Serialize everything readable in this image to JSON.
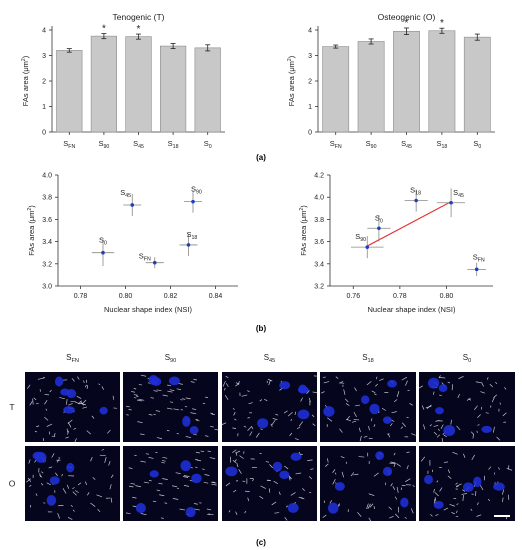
{
  "panel_labels": {
    "a": "(a)",
    "b": "(b)",
    "c": "(c)"
  },
  "chart_data": [
    {
      "type": "bar",
      "title": "Tenogenic (T)",
      "ylabel": "FAs area (μm²)",
      "ylim": [
        0,
        4
      ],
      "yticks": [
        "0",
        "1",
        "2",
        "3",
        "4"
      ],
      "categories": [
        {
          "base": "S",
          "sub": "FN"
        },
        {
          "base": "S",
          "sub": "90"
        },
        {
          "base": "S",
          "sub": "45"
        },
        {
          "base": "S",
          "sub": "18"
        },
        {
          "base": "S",
          "sub": "0"
        }
      ],
      "values": [
        3.2,
        3.76,
        3.74,
        3.37,
        3.3
      ],
      "errors": [
        0.07,
        0.1,
        0.1,
        0.1,
        0.12
      ],
      "significance": [
        "",
        "*",
        "*",
        "",
        ""
      ],
      "bar_color": "#c8c8c8"
    },
    {
      "type": "bar",
      "title": "Osteogenic (O)",
      "ylabel": "FAs area (μm²)",
      "ylim": [
        0,
        4
      ],
      "yticks": [
        "0",
        "1",
        "2",
        "3",
        "4"
      ],
      "categories": [
        {
          "base": "S",
          "sub": "FN"
        },
        {
          "base": "S",
          "sub": "90"
        },
        {
          "base": "S",
          "sub": "45"
        },
        {
          "base": "S",
          "sub": "18"
        },
        {
          "base": "S",
          "sub": "0"
        }
      ],
      "values": [
        3.35,
        3.55,
        3.95,
        3.97,
        3.72
      ],
      "errors": [
        0.06,
        0.1,
        0.13,
        0.1,
        0.12
      ],
      "significance": [
        "",
        "",
        "*",
        "*",
        ""
      ],
      "bar_color": "#c8c8c8"
    },
    {
      "type": "scatter",
      "ylabel": "FAs area (μm²)",
      "xlabel": "Nuclear shape index (NSI)",
      "xlim": [
        0.77,
        0.85
      ],
      "ylim": [
        3.0,
        4.0
      ],
      "xticks": [
        {
          "value": 0.78,
          "label": "0.78"
        },
        {
          "value": 0.8,
          "label": "0.80"
        },
        {
          "value": 0.82,
          "label": "0.82"
        },
        {
          "value": 0.84,
          "label": "0.84"
        }
      ],
      "yticks": [
        {
          "value": 3.0,
          "label": "3.0"
        },
        {
          "value": 3.2,
          "label": "3.2"
        },
        {
          "value": 3.4,
          "label": "3.4"
        },
        {
          "value": 3.6,
          "label": "3.6"
        },
        {
          "value": 3.8,
          "label": "3.8"
        },
        {
          "value": 4.0,
          "label": "4.0"
        }
      ],
      "points": [
        {
          "base": "S",
          "sub": "45",
          "x": 0.803,
          "y": 3.73,
          "xerr": 0.004,
          "yerr": 0.1
        },
        {
          "base": "S",
          "sub": "90",
          "x": 0.83,
          "y": 3.76,
          "xerr": 0.004,
          "yerr": 0.1
        },
        {
          "base": "S",
          "sub": "0",
          "x": 0.79,
          "y": 3.3,
          "xerr": 0.005,
          "yerr": 0.12
        },
        {
          "base": "S",
          "sub": "FN",
          "x": 0.813,
          "y": 3.21,
          "xerr": 0.004,
          "yerr": 0.05
        },
        {
          "base": "S",
          "sub": "18",
          "x": 0.828,
          "y": 3.37,
          "xerr": 0.004,
          "yerr": 0.1
        }
      ],
      "point_color": "#1f3fbf"
    },
    {
      "type": "scatter",
      "ylabel": "FAs area (μm²)",
      "xlabel": "Nuclear shape index (NSI)",
      "xlim": [
        0.75,
        0.82
      ],
      "ylim": [
        3.2,
        4.2
      ],
      "xticks": [
        {
          "value": 0.76,
          "label": "0.76"
        },
        {
          "value": 0.78,
          "label": "0.78"
        },
        {
          "value": 0.8,
          "label": "0.80"
        }
      ],
      "yticks": [
        {
          "value": 3.2,
          "label": "3.2"
        },
        {
          "value": 3.4,
          "label": "3.4"
        },
        {
          "value": 3.6,
          "label": "3.6"
        },
        {
          "value": 3.8,
          "label": "3.8"
        },
        {
          "value": 4.0,
          "label": "4.0"
        },
        {
          "value": 4.2,
          "label": "4.2"
        }
      ],
      "points": [
        {
          "base": "S",
          "sub": "90",
          "x": 0.766,
          "y": 3.55,
          "xerr": 0.007,
          "yerr": 0.1
        },
        {
          "base": "S",
          "sub": "0",
          "x": 0.771,
          "y": 3.72,
          "xerr": 0.005,
          "yerr": 0.12
        },
        {
          "base": "S",
          "sub": "18",
          "x": 0.787,
          "y": 3.97,
          "xerr": 0.005,
          "yerr": 0.1
        },
        {
          "base": "S",
          "sub": "45",
          "x": 0.802,
          "y": 3.95,
          "xerr": 0.006,
          "yerr": 0.13
        },
        {
          "base": "S",
          "sub": "FN",
          "x": 0.813,
          "y": 3.35,
          "xerr": 0.004,
          "yerr": 0.06
        }
      ],
      "point_color": "#1f3fbf",
      "fit_line": {
        "x": [
          0.766,
          0.802
        ],
        "y": [
          3.56,
          3.96
        ],
        "color": "#e53935"
      }
    }
  ],
  "micrographs": {
    "columns": [
      {
        "base": "S",
        "sub": "FN"
      },
      {
        "base": "S",
        "sub": "90"
      },
      {
        "base": "S",
        "sub": "45"
      },
      {
        "base": "S",
        "sub": "18"
      },
      {
        "base": "S",
        "sub": "0"
      }
    ],
    "rows": [
      "T",
      "O"
    ],
    "background": "#05061e",
    "nucleus_color": "#1f2fd6",
    "fiber_color": "#e8e8e8"
  }
}
